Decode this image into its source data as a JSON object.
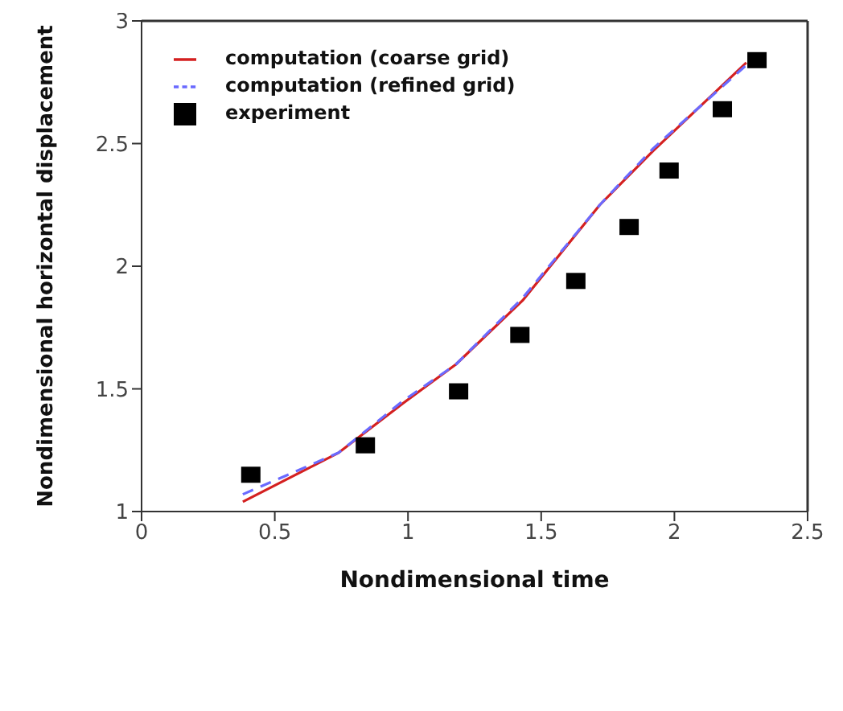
{
  "chart_data": {
    "type": "line",
    "xlabel": "Nondimensional time",
    "ylabel": "Nondimensional horizontal displacement",
    "xlim": [
      0,
      2.5
    ],
    "xticks": [
      0,
      0.5,
      1,
      1.5,
      2,
      2.5
    ],
    "ylim": [
      1,
      3
    ],
    "yticks": [
      1,
      1.5,
      2,
      2.5,
      3
    ],
    "grid": false,
    "legend": "top left",
    "series": [
      {
        "name": "computation (coarse grid)",
        "color": "#d42020",
        "line_style": "solid",
        "marker": "none",
        "x": [
          0.38,
          0.74,
          0.98,
          1.18,
          1.43,
          1.72,
          1.92,
          2.27
        ],
        "values": [
          1.04,
          1.24,
          1.44,
          1.6,
          1.86,
          2.25,
          2.47,
          2.83
        ]
      },
      {
        "name": "computation (refined grid)",
        "color": "#6a6aff",
        "line_style": "dashed",
        "marker": "none",
        "x": [
          0.38,
          0.74,
          0.98,
          1.18,
          1.43,
          1.72,
          1.92,
          2.27
        ],
        "values": [
          1.07,
          1.24,
          1.45,
          1.6,
          1.87,
          2.25,
          2.48,
          2.82
        ]
      },
      {
        "name": "experiment",
        "type": "scatter",
        "color": "#000000",
        "marker": "square",
        "x": [
          0.41,
          0.84,
          1.19,
          1.42,
          1.63,
          1.83,
          1.98,
          2.18,
          2.31
        ],
        "values": [
          1.15,
          1.27,
          1.49,
          1.72,
          1.94,
          2.16,
          2.39,
          2.64,
          2.84
        ]
      }
    ]
  }
}
